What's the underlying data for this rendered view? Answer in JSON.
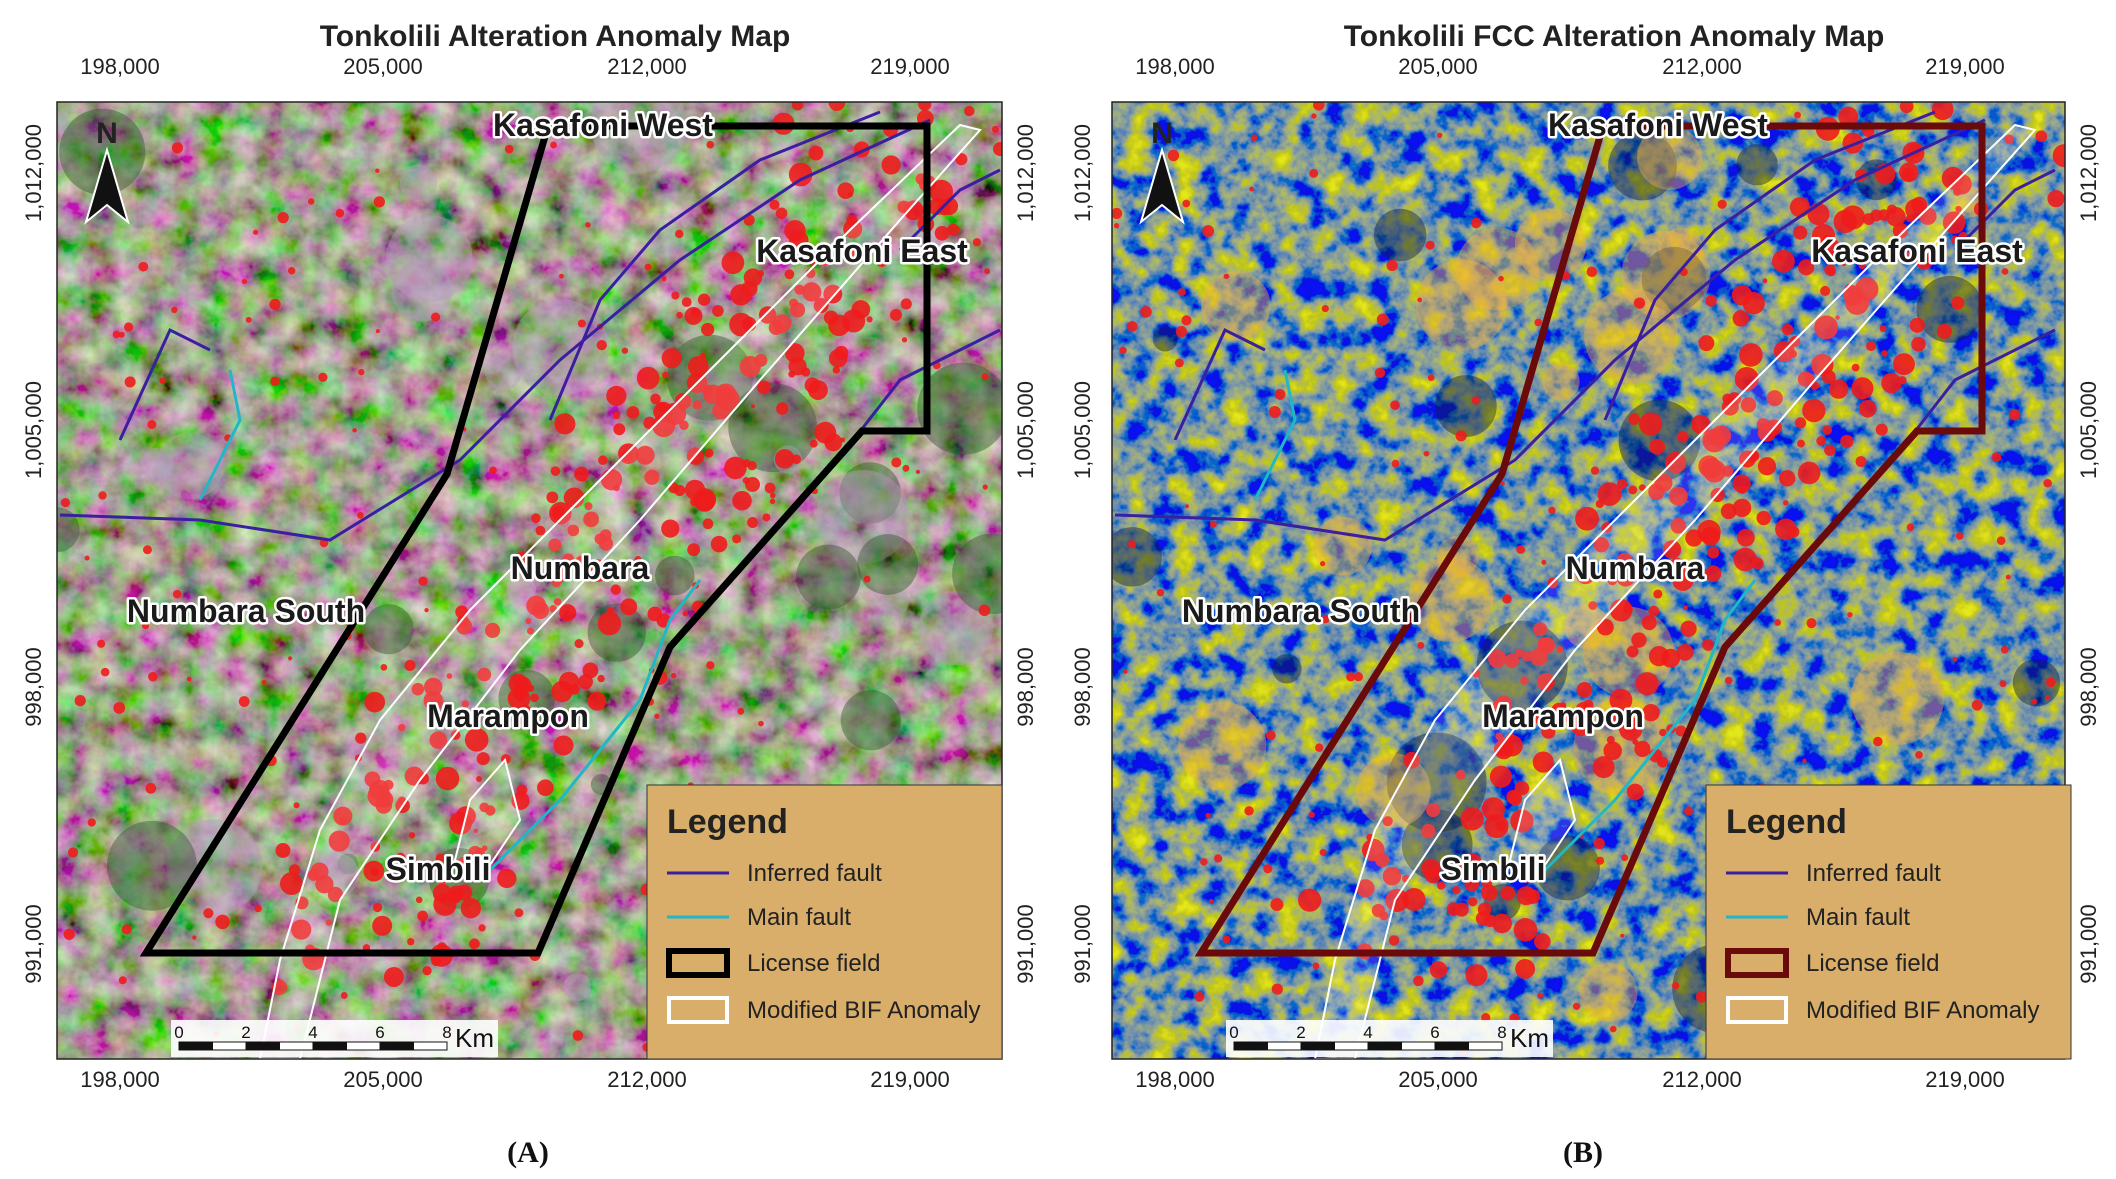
{
  "panels": [
    {
      "title": "Tonkolili Alteration Anomaly Map",
      "caption": "(A)",
      "license_color": "#000000"
    },
    {
      "title": "Tonkolili FCC Alteration Anomaly Map",
      "caption": "(B)",
      "license_color": "#6b0a0a"
    }
  ],
  "x_ticks": [
    "198,000",
    "205,000",
    "212,000",
    "219,000"
  ],
  "y_ticks": [
    "1,012,000",
    "1,005,000",
    "998,000",
    "991,000"
  ],
  "north": "N",
  "places": [
    "Kasafoni West",
    "Kasafoni East",
    "Numbara",
    "Numbara South",
    "Marampon",
    "Simbili"
  ],
  "legend": {
    "title": "Legend",
    "items": [
      "Inferred fault",
      "Main fault",
      "License field",
      "Modified BIF Anomaly"
    ]
  },
  "scale_bar": {
    "labels": [
      "0",
      "2",
      "4",
      "6",
      "8"
    ],
    "unit": "Km"
  }
}
